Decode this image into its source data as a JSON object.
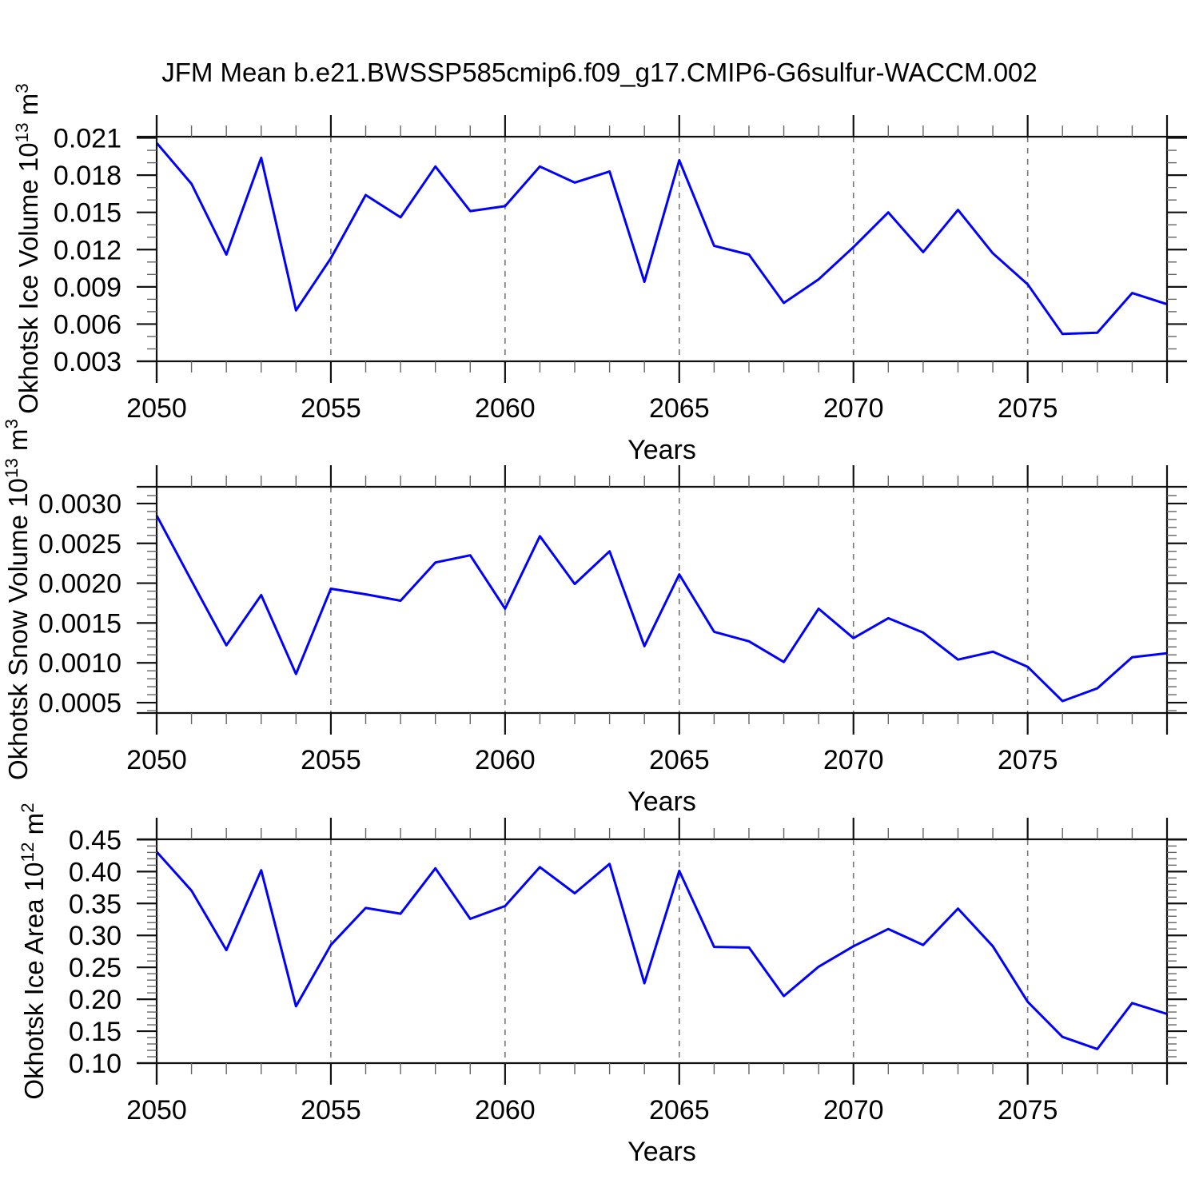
{
  "title": "JFM Mean b.e21.BWSSP585cmip6.f09_g17.CMIP6-G6sulfur-WACCM.002",
  "colors": {
    "line": "#0000ff",
    "axis": "#111111",
    "minor_tick": "#666666",
    "grid": "#777777",
    "background": "#ffffff"
  },
  "x_axis": {
    "label": "Years",
    "xlim": [
      2050,
      2079
    ],
    "major_ticks": [
      2050,
      2055,
      2060,
      2065,
      2070,
      2075
    ],
    "major_tick_labels": [
      "2050",
      "2055",
      "2060",
      "2065",
      "2070",
      "2075"
    ],
    "minor_step": 1,
    "grid_years": [
      2055,
      2060,
      2065,
      2070,
      2075
    ]
  },
  "years": [
    2050,
    2051,
    2052,
    2053,
    2054,
    2055,
    2056,
    2057,
    2058,
    2059,
    2060,
    2061,
    2062,
    2063,
    2064,
    2065,
    2066,
    2067,
    2068,
    2069,
    2070,
    2071,
    2072,
    2073,
    2074,
    2075,
    2076,
    2077,
    2078,
    2079
  ],
  "chart_data": [
    {
      "type": "line",
      "name": "ice-volume",
      "ylabel": "Okhotsk Ice Volume 10^13 m^3",
      "ylabel_parts": {
        "prefix": "Okhotsk Ice Volume 10",
        "exp": "13",
        "mid": " m",
        "exp2": "3"
      },
      "xlabel": "Years",
      "ylim": [
        0.003,
        0.0211
      ],
      "yticks": [
        0.021,
        0.018,
        0.015,
        0.012,
        0.009,
        0.006,
        0.003
      ],
      "ytick_labels": [
        "0.021",
        "0.018",
        "0.015",
        "0.012",
        "0.009",
        "0.006",
        "0.003"
      ],
      "minor_step": 0.001,
      "x": [
        2050,
        2051,
        2052,
        2053,
        2054,
        2055,
        2056,
        2057,
        2058,
        2059,
        2060,
        2061,
        2062,
        2063,
        2064,
        2065,
        2066,
        2067,
        2068,
        2069,
        2070,
        2071,
        2072,
        2073,
        2074,
        2075,
        2076,
        2077,
        2078,
        2079
      ],
      "values": [
        0.0206,
        0.0173,
        0.0116,
        0.0194,
        0.0071,
        0.0113,
        0.0164,
        0.0146,
        0.0187,
        0.0151,
        0.0155,
        0.0187,
        0.0174,
        0.0183,
        0.0094,
        0.0192,
        0.0123,
        0.0116,
        0.0077,
        0.0096,
        0.0122,
        0.015,
        0.0118,
        0.0152,
        0.0117,
        0.0092,
        0.0052,
        0.0053,
        0.0085,
        0.0076
      ]
    },
    {
      "type": "line",
      "name": "snow-volume",
      "ylabel": "Okhotsk Snow Volume 10^13 m^3",
      "ylabel_parts": {
        "prefix": "Okhotsk Snow Volume 10",
        "exp": "13",
        "mid": " m",
        "exp2": "3"
      },
      "xlabel": "Years",
      "ylim": [
        0.00037,
        0.00321
      ],
      "yticks": [
        0.003,
        0.0025,
        0.002,
        0.0015,
        0.001,
        0.0005
      ],
      "ytick_labels": [
        "0.0030",
        "0.0025",
        "0.0020",
        "0.0015",
        "0.0010",
        "0.0005"
      ],
      "minor_step": 0.0001,
      "x": [
        2050,
        2051,
        2052,
        2053,
        2054,
        2055,
        2056,
        2057,
        2058,
        2059,
        2060,
        2061,
        2062,
        2063,
        2064,
        2065,
        2066,
        2067,
        2068,
        2069,
        2070,
        2071,
        2072,
        2073,
        2074,
        2075,
        2076,
        2077,
        2078,
        2079
      ],
      "values": [
        0.00285,
        0.00203,
        0.00122,
        0.00185,
        0.00086,
        0.00193,
        0.00186,
        0.00178,
        0.00226,
        0.00235,
        0.00168,
        0.00259,
        0.00199,
        0.0024,
        0.00121,
        0.00211,
        0.00139,
        0.00127,
        0.00101,
        0.00168,
        0.00131,
        0.00156,
        0.00138,
        0.00104,
        0.00114,
        0.00095,
        0.00052,
        0.00068,
        0.00107,
        0.00112
      ]
    },
    {
      "type": "line",
      "name": "ice-area",
      "ylabel": "Okhotsk Ice Area 10^12 m^2",
      "ylabel_parts": {
        "prefix": "Okhotsk Ice Area 10",
        "exp": "12",
        "mid": " m",
        "exp2": "2"
      },
      "xlabel": "Years",
      "ylim": [
        0.1,
        0.4505
      ],
      "yticks": [
        0.45,
        0.4,
        0.35,
        0.3,
        0.25,
        0.2,
        0.15,
        0.1
      ],
      "ytick_labels": [
        "0.45",
        "0.40",
        "0.35",
        "0.30",
        "0.25",
        "0.20",
        "0.15",
        "0.10"
      ],
      "minor_step": 0.01,
      "x": [
        2050,
        2051,
        2052,
        2053,
        2054,
        2055,
        2056,
        2057,
        2058,
        2059,
        2060,
        2061,
        2062,
        2063,
        2064,
        2065,
        2066,
        2067,
        2068,
        2069,
        2070,
        2071,
        2072,
        2073,
        2074,
        2075,
        2076,
        2077,
        2078,
        2079
      ],
      "values": [
        0.431,
        0.37,
        0.277,
        0.402,
        0.189,
        0.285,
        0.343,
        0.334,
        0.405,
        0.326,
        0.346,
        0.407,
        0.366,
        0.412,
        0.225,
        0.401,
        0.282,
        0.281,
        0.205,
        0.251,
        0.283,
        0.31,
        0.285,
        0.342,
        0.283,
        0.196,
        0.141,
        0.122,
        0.194,
        0.177
      ]
    }
  ]
}
